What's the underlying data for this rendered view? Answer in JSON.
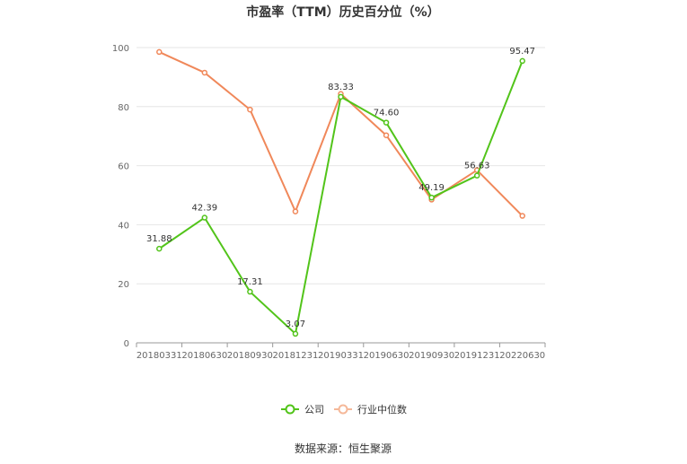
{
  "chart_data": {
    "type": "line",
    "title": "市盈率（TTM）历史百分位（%）",
    "categories": [
      "20180331",
      "20180630",
      "20180930",
      "20181231",
      "20190331",
      "20190630",
      "20190930",
      "20191231",
      "20220630"
    ],
    "ylim": [
      0,
      100
    ],
    "yticks": [
      0,
      20,
      40,
      60,
      80,
      100
    ],
    "grid": true,
    "legend_position": "bottom",
    "series": [
      {
        "name": "公司",
        "color": "#52c41a",
        "values": [
          31.88,
          42.39,
          17.31,
          3.07,
          83.33,
          74.6,
          49.19,
          56.63,
          95.47
        ],
        "labels": [
          "31.88",
          "42.39",
          "17.31",
          "3.07",
          "83.33",
          "74.60",
          "49.19",
          "56.63",
          "95.47"
        ]
      },
      {
        "name": "行业中位数",
        "color": "#f0885a",
        "values": [
          98.5,
          91.5,
          79.0,
          44.5,
          84.3,
          70.3,
          48.5,
          58.5,
          43.0
        ]
      }
    ]
  },
  "source": "数据来源：恒生聚源"
}
